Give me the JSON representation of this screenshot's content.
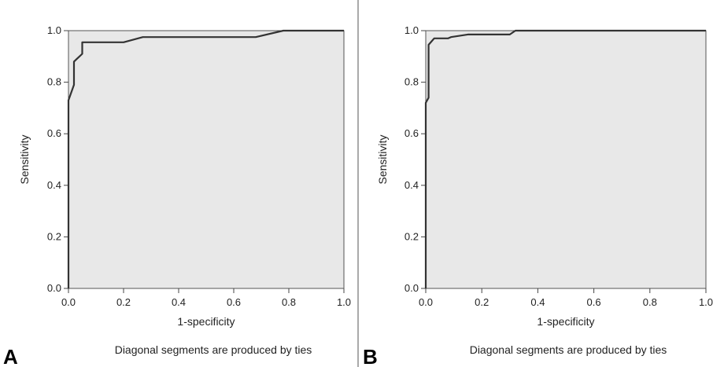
{
  "chart_data": [
    {
      "panel": "A",
      "type": "line",
      "title": "",
      "xlabel": "1-specificity",
      "ylabel": "Sensitivity",
      "xlim": [
        0,
        1
      ],
      "ylim": [
        0,
        1
      ],
      "xticks": [
        "0.0",
        "0.2",
        "0.4",
        "0.6",
        "0.8",
        "1.0"
      ],
      "yticks": [
        "0.0",
        "0.2",
        "0.4",
        "0.6",
        "0.8",
        "1.0"
      ],
      "note": "Diagonal segments are produced by ties",
      "series": [
        {
          "x": [
            0.0,
            0.0,
            0.01,
            0.02,
            0.02,
            0.03,
            0.04,
            0.05,
            0.05,
            0.2,
            0.27,
            0.68,
            0.78,
            1.0
          ],
          "y": [
            0.0,
            0.73,
            0.76,
            0.79,
            0.88,
            0.89,
            0.9,
            0.91,
            0.955,
            0.955,
            0.975,
            0.975,
            1.0,
            1.0
          ]
        }
      ]
    },
    {
      "panel": "B",
      "type": "line",
      "title": "",
      "xlabel": "1-specificity",
      "ylabel": "Sensitivity",
      "xlim": [
        0,
        1
      ],
      "ylim": [
        0,
        1
      ],
      "xticks": [
        "0.0",
        "0.2",
        "0.4",
        "0.6",
        "0.8",
        "1.0"
      ],
      "yticks": [
        "0.0",
        "0.2",
        "0.4",
        "0.6",
        "0.8",
        "1.0"
      ],
      "note": "Diagonal segments are produced by ties",
      "series": [
        {
          "x": [
            0.0,
            0.0,
            0.01,
            0.01,
            0.03,
            0.08,
            0.09,
            0.15,
            0.3,
            0.32,
            1.0
          ],
          "y": [
            0.0,
            0.72,
            0.74,
            0.945,
            0.97,
            0.97,
            0.975,
            0.985,
            0.985,
            1.0,
            1.0
          ]
        }
      ]
    }
  ]
}
